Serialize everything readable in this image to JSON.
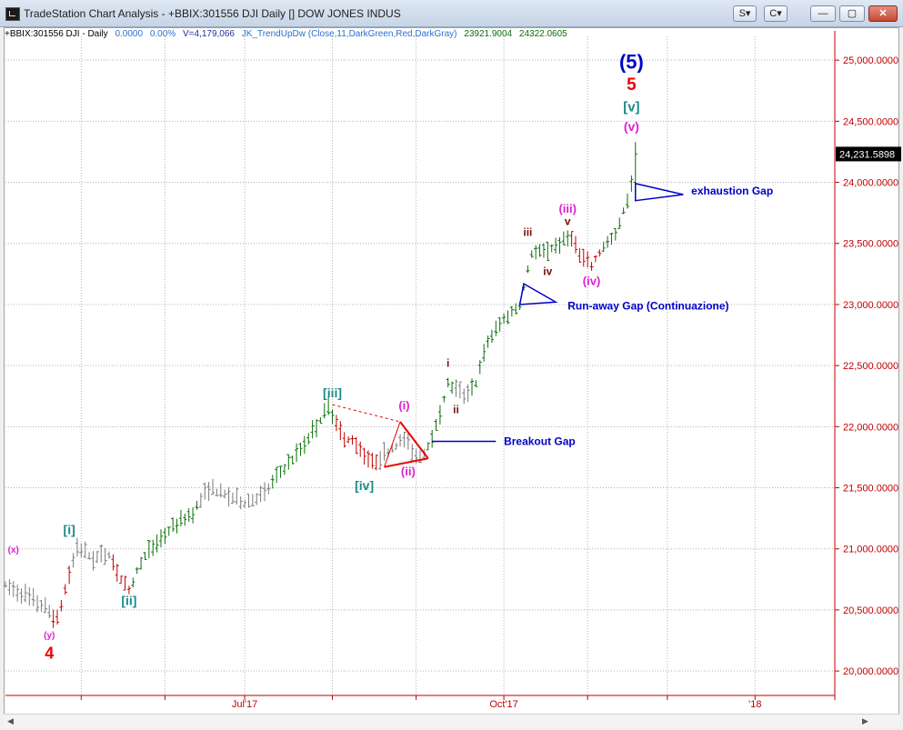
{
  "window": {
    "title": "TradeStation Chart Analysis - +BBIX:301556 DJI Daily [] DOW JONES INDUS",
    "s_button": "S",
    "c_button": "C"
  },
  "info_line": {
    "symbol": "+BBIX:301556 DJI - Daily",
    "change": "0.0000",
    "change_pct": "0.00%",
    "volume": "V=4,179,066",
    "indicator": "JK_TrendUpDw (Close,11,DarkGreen,Red,DarkGray)",
    "value1": "23921.9004",
    "value2": "24322.0605"
  },
  "colors": {
    "up": "#0a6e0a",
    "down": "#c00000",
    "neutral": "#7a7a7a",
    "grid": "#b4b4b4",
    "price_axis": "#c00000",
    "blue": "#0000c8",
    "teal": "#1b8a8a",
    "magenta": "#e020d0",
    "maroon": "#7a1010",
    "red": "#ee0000"
  },
  "chart_data": {
    "type": "bar",
    "subtype": "ohlc",
    "symbol": "DJI Daily",
    "y_axis": {
      "side": "right",
      "ylim": [
        19800,
        25150
      ],
      "ticks": [
        {
          "value": 20000,
          "label": "20,000.0000"
        },
        {
          "value": 20500,
          "label": "20,500.0000"
        },
        {
          "value": 21000,
          "label": "21,000.0000"
        },
        {
          "value": 21500,
          "label": "21,500.0000"
        },
        {
          "value": 22000,
          "label": "22,000.0000"
        },
        {
          "value": 22500,
          "label": "22,500.0000"
        },
        {
          "value": 23000,
          "label": "23,000.0000"
        },
        {
          "value": 23500,
          "label": "23,500.0000"
        },
        {
          "value": 24000,
          "label": "24,000.0000"
        },
        {
          "value": 24500,
          "label": "24,500.0000"
        },
        {
          "value": 25000,
          "label": "25,000.0000"
        }
      ],
      "last_price": 24231.5898,
      "last_price_label": "24,231.5898"
    },
    "x_axis": {
      "bars": 208,
      "tick_labels": [
        {
          "bar": 60,
          "label": "Jul'17"
        },
        {
          "bar": 125,
          "label": "Oct'17"
        },
        {
          "bar": 188,
          "label": "'18"
        }
      ],
      "grid_bars": [
        19,
        40,
        60,
        82,
        103,
        125,
        146,
        166,
        188,
        208
      ]
    },
    "grid": true,
    "path": [
      [
        0,
        20700
      ],
      [
        5,
        20620
      ],
      [
        10,
        20520
      ],
      [
        13,
        20420
      ],
      [
        16,
        20790
      ],
      [
        18,
        21020
      ],
      [
        22,
        20920
      ],
      [
        26,
        20960
      ],
      [
        29,
        20750
      ],
      [
        31,
        20650
      ],
      [
        34,
        20900
      ],
      [
        38,
        21050
      ],
      [
        42,
        21180
      ],
      [
        47,
        21300
      ],
      [
        51,
        21500
      ],
      [
        56,
        21430
      ],
      [
        60,
        21380
      ],
      [
        65,
        21450
      ],
      [
        69,
        21630
      ],
      [
        73,
        21770
      ],
      [
        77,
        21960
      ],
      [
        81,
        22160
      ],
      [
        83,
        22050
      ],
      [
        85,
        21880
      ],
      [
        87,
        21900
      ],
      [
        90,
        21780
      ],
      [
        92,
        21700
      ],
      [
        96,
        21800
      ],
      [
        100,
        21900
      ],
      [
        103,
        21760
      ],
      [
        105,
        21780
      ],
      [
        108,
        22000
      ],
      [
        111,
        22350
      ],
      [
        115,
        22260
      ],
      [
        118,
        22360
      ],
      [
        121,
        22700
      ],
      [
        125,
        22880
      ],
      [
        129,
        23000
      ],
      [
        132,
        23420
      ],
      [
        135,
        23430
      ],
      [
        138,
        23480
      ],
      [
        142,
        23560
      ],
      [
        144,
        23400
      ],
      [
        147,
        23320
      ],
      [
        150,
        23480
      ],
      [
        153,
        23560
      ],
      [
        156,
        23860
      ],
      [
        157,
        24000
      ],
      [
        158,
        24220
      ]
    ],
    "bar_colors": [
      {
        "range": [
          0,
          11
        ],
        "color": "neutral"
      },
      {
        "range": [
          12,
          16
        ],
        "color": "down"
      },
      {
        "range": [
          17,
          26
        ],
        "color": "neutral"
      },
      {
        "range": [
          27,
          31
        ],
        "color": "down"
      },
      {
        "range": [
          32,
          48
        ],
        "color": "up"
      },
      {
        "range": [
          49,
          66
        ],
        "color": "neutral"
      },
      {
        "range": [
          67,
          82
        ],
        "color": "up"
      },
      {
        "range": [
          83,
          93
        ],
        "color": "down"
      },
      {
        "range": [
          94,
          105
        ],
        "color": "neutral"
      },
      {
        "range": [
          106,
          112
        ],
        "color": "up"
      },
      {
        "range": [
          113,
          116
        ],
        "color": "neutral"
      },
      {
        "range": [
          117,
          141
        ],
        "color": "up"
      },
      {
        "range": [
          142,
          149
        ],
        "color": "down"
      },
      {
        "range": [
          150,
          158
        ],
        "color": "up"
      }
    ],
    "wave_labels": [
      {
        "text": "(5)",
        "bar": 157,
        "y": 24930,
        "color": "blue",
        "size": 22
      },
      {
        "text": "5",
        "bar": 157,
        "y": 24755,
        "color": "red",
        "size": 19
      },
      {
        "text": "[v]",
        "bar": 157,
        "y": 24580,
        "color": "teal",
        "size": 15
      },
      {
        "text": "(v)",
        "bar": 157,
        "y": 24420,
        "color": "magenta",
        "size": 14
      },
      {
        "text": "(iii)",
        "bar": 141,
        "y": 23750,
        "color": "magenta",
        "size": 13
      },
      {
        "text": "iii",
        "bar": 131,
        "y": 23560,
        "color": "maroon",
        "size": 12
      },
      {
        "text": "v",
        "bar": 141,
        "y": 23650,
        "color": "maroon",
        "size": 12
      },
      {
        "text": "iv",
        "bar": 136,
        "y": 23240,
        "color": "maroon",
        "size": 12
      },
      {
        "text": "(iv)",
        "bar": 147,
        "y": 23160,
        "color": "magenta",
        "size": 13
      },
      {
        "text": "i",
        "bar": 111,
        "y": 22490,
        "color": "maroon",
        "size": 12
      },
      {
        "text": "ii",
        "bar": 113,
        "y": 22110,
        "color": "maroon",
        "size": 12
      },
      {
        "text": "[iii]",
        "bar": 82,
        "y": 22240,
        "color": "teal",
        "size": 14
      },
      {
        "text": "(i)",
        "bar": 100,
        "y": 22140,
        "color": "magenta",
        "size": 13
      },
      {
        "text": "(ii)",
        "bar": 101,
        "y": 21600,
        "color": "magenta",
        "size": 13
      },
      {
        "text": "[iv]",
        "bar": 90,
        "y": 21480,
        "color": "teal",
        "size": 14
      },
      {
        "text": "[i]",
        "bar": 16,
        "y": 21120,
        "color": "teal",
        "size": 14
      },
      {
        "text": "[ii]",
        "bar": 31,
        "y": 20540,
        "color": "teal",
        "size": 14
      },
      {
        "text": "(x)",
        "bar": 2,
        "y": 20970,
        "color": "magenta",
        "size": 10
      },
      {
        "text": "(y)",
        "bar": 11,
        "y": 20270,
        "color": "magenta",
        "size": 10
      },
      {
        "text": "4",
        "bar": 11,
        "y": 20100,
        "color": "red",
        "size": 18
      }
    ],
    "annotations": [
      {
        "text": "exhaustion Gap",
        "bar": 172,
        "y": 23900,
        "color": "blue"
      },
      {
        "text": "Run-away Gap (Continuazione)",
        "bar": 141,
        "y": 22960,
        "color": "blue"
      },
      {
        "text": "Breakout Gap",
        "bar": 125,
        "y": 21850,
        "color": "blue"
      }
    ],
    "drawings": [
      {
        "kind": "polygon",
        "points": [
          [
            158,
            23990
          ],
          [
            170,
            23900
          ],
          [
            158,
            23850
          ]
        ],
        "color": "blue"
      },
      {
        "kind": "polygon",
        "points": [
          [
            130,
            23170
          ],
          [
            138,
            23020
          ],
          [
            129,
            23000
          ]
        ],
        "color": "blue"
      },
      {
        "kind": "line",
        "from": [
          107,
          21880
        ],
        "to": [
          123,
          21880
        ],
        "color": "blue"
      },
      {
        "kind": "line",
        "from": [
          99,
          22040
        ],
        "to": [
          106,
          21740
        ],
        "color": "red",
        "width": 2
      },
      {
        "kind": "line",
        "from": [
          95,
          21670
        ],
        "to": [
          106,
          21740
        ],
        "color": "red",
        "width": 2
      },
      {
        "kind": "line",
        "from": [
          99,
          22040
        ],
        "to": [
          95,
          21670
        ],
        "color": "red",
        "width": 1
      },
      {
        "kind": "dashed",
        "from": [
          82,
          22180
        ],
        "to": [
          99,
          22040
        ],
        "color": "red"
      }
    ]
  }
}
